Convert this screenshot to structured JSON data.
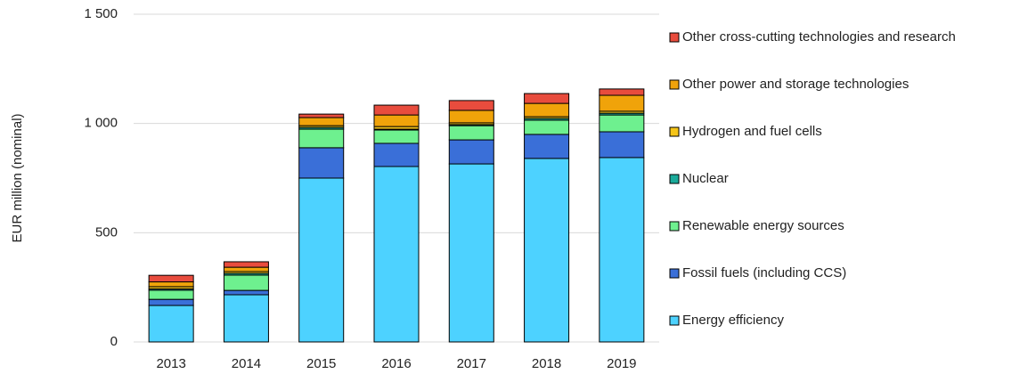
{
  "chart_data": {
    "type": "stacked_bar",
    "y_label": "EUR million (nominal)",
    "categories": [
      "2013",
      "2014",
      "2015",
      "2016",
      "2017",
      "2018",
      "2019"
    ],
    "series": [
      {
        "name": "Energy efficiency",
        "color": "#4dd2ff",
        "values": [
          167,
          216,
          750,
          803,
          815,
          840,
          844
        ]
      },
      {
        "name": "Fossil fuels (including CCS)",
        "color": "#3a6fd8",
        "values": [
          28,
          20,
          139,
          106,
          110,
          110,
          118
        ]
      },
      {
        "name": "Renewable energy sources",
        "color": "#6ef08f",
        "values": [
          42,
          70,
          85,
          61,
          65,
          65,
          77
        ]
      },
      {
        "name": "Nuclear",
        "color": "#1aaa9a",
        "values": [
          6,
          8,
          8,
          4,
          5,
          8,
          8
        ]
      },
      {
        "name": "Hydrogen and fuel cells",
        "color": "#f5c518",
        "values": [
          10,
          8,
          8,
          12,
          8,
          8,
          9
        ]
      },
      {
        "name": "Other power and storage technologies",
        "color": "#f0a30a",
        "values": [
          22,
          20,
          37,
          53,
          57,
          61,
          73
        ]
      },
      {
        "name": "Other cross-cutting technologies and research",
        "color": "#e84c3d",
        "values": [
          30,
          25,
          16,
          45,
          45,
          45,
          29
        ]
      }
    ],
    "ylim": [
      0,
      1500
    ],
    "yticks": [
      0,
      500,
      {
        "value": 1000,
        "label": "1 000"
      },
      {
        "value": 1500,
        "label": "1 500"
      }
    ],
    "grid": true,
    "legend": "right"
  }
}
